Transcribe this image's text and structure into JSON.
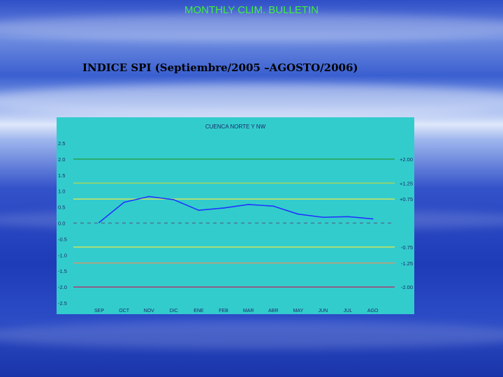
{
  "slide": {
    "title": "MONTHLY CLIM. BULLETIN",
    "subtitle": "INDICE SPI  (Septiembre/2005 –AGOSTO/2006)"
  },
  "chart_data": {
    "type": "line",
    "title": "CUENCA NORTE Y NW",
    "xlabel": "",
    "ylabel": "",
    "categories": [
      "SEP",
      "OCT",
      "NOV",
      "DIC",
      "ENE",
      "FEB",
      "MAR",
      "ABR",
      "MAY",
      "JUN",
      "JUL",
      "AGO"
    ],
    "series": [
      {
        "values": [
          0.02,
          0.65,
          0.83,
          0.73,
          0.4,
          0.47,
          0.58,
          0.53,
          0.28,
          0.18,
          0.2,
          0.13
        ],
        "color": "#2233ff"
      }
    ],
    "ylim": [
      -2.5,
      2.5
    ],
    "yticks": [
      "2.5",
      "2.0",
      "1.5",
      "1.0",
      "0.5",
      "0.0",
      "-0.5",
      "-1.0",
      "-1.5",
      "-2.0",
      "-2.5"
    ],
    "thresholds": [
      {
        "value": 2.0,
        "label": "+2.00",
        "color": "#1f9a3a"
      },
      {
        "value": 1.25,
        "label": "+1.25",
        "color": "#b8d84a"
      },
      {
        "value": 0.75,
        "label": "+0.75",
        "color": "#e8e84a"
      },
      {
        "value": 0.0,
        "label": "",
        "color": "#4a6a8a",
        "dashed": true
      },
      {
        "value": -0.75,
        "label": "-0.75",
        "color": "#e8e84a"
      },
      {
        "value": -1.25,
        "label": "-1.25",
        "color": "#e89060"
      },
      {
        "value": -2.0,
        "label": "-2.00",
        "color": "#c02060"
      }
    ],
    "background": "#33cccc",
    "grid": false
  }
}
